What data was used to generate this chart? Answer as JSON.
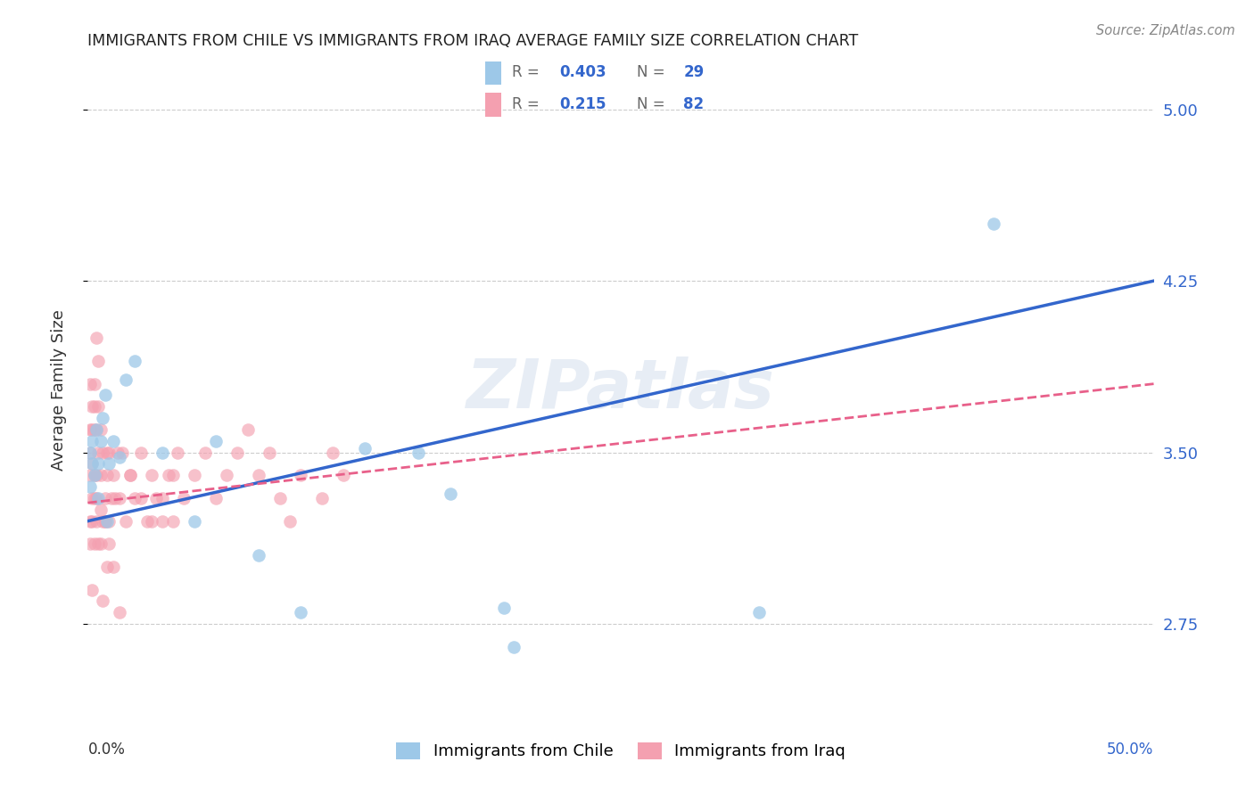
{
  "title": "IMMIGRANTS FROM CHILE VS IMMIGRANTS FROM IRAQ AVERAGE FAMILY SIZE CORRELATION CHART",
  "source": "Source: ZipAtlas.com",
  "ylabel": "Average Family Size",
  "ytick_labels": [
    "2.75",
    "3.50",
    "4.25",
    "5.00"
  ],
  "ytick_values": [
    2.75,
    3.5,
    4.25,
    5.0
  ],
  "ylim": [
    2.35,
    5.2
  ],
  "xlim": [
    0.0,
    0.5
  ],
  "legend1_label": "Immigrants from Chile",
  "legend2_label": "Immigrants from Iraq",
  "r_chile": "0.403",
  "n_chile": "29",
  "r_iraq": "0.215",
  "n_iraq": "82",
  "color_chile": "#9DC8E8",
  "color_iraq": "#F4A0B0",
  "line_chile_color": "#3366CC",
  "line_iraq_color": "#E8608A",
  "watermark": "ZIPatlas",
  "chile_x": [
    0.001,
    0.001,
    0.002,
    0.002,
    0.003,
    0.004,
    0.005,
    0.005,
    0.006,
    0.007,
    0.008,
    0.009,
    0.01,
    0.012,
    0.015,
    0.018,
    0.022,
    0.035,
    0.05,
    0.06,
    0.08,
    0.1,
    0.13,
    0.155,
    0.17,
    0.2,
    0.195,
    0.315,
    0.425
  ],
  "chile_y": [
    3.35,
    3.5,
    3.55,
    3.45,
    3.4,
    3.6,
    3.3,
    3.45,
    3.55,
    3.65,
    3.75,
    3.2,
    3.45,
    3.55,
    3.48,
    3.82,
    3.9,
    3.5,
    3.2,
    3.55,
    3.05,
    2.8,
    3.52,
    3.5,
    3.32,
    2.65,
    2.82,
    2.8,
    4.5
  ],
  "iraq_x": [
    0.001,
    0.001,
    0.001,
    0.001,
    0.001,
    0.001,
    0.002,
    0.002,
    0.002,
    0.002,
    0.002,
    0.003,
    0.003,
    0.003,
    0.003,
    0.003,
    0.004,
    0.004,
    0.004,
    0.004,
    0.005,
    0.005,
    0.005,
    0.006,
    0.006,
    0.006,
    0.007,
    0.007,
    0.008,
    0.008,
    0.009,
    0.009,
    0.01,
    0.01,
    0.011,
    0.012,
    0.013,
    0.014,
    0.015,
    0.016,
    0.018,
    0.02,
    0.022,
    0.025,
    0.028,
    0.03,
    0.032,
    0.035,
    0.038,
    0.04,
    0.042,
    0.045,
    0.05,
    0.055,
    0.06,
    0.065,
    0.07,
    0.075,
    0.08,
    0.085,
    0.09,
    0.095,
    0.1,
    0.11,
    0.115,
    0.12,
    0.002,
    0.003,
    0.004,
    0.005,
    0.006,
    0.007,
    0.008,
    0.009,
    0.01,
    0.012,
    0.015,
    0.02,
    0.025,
    0.03,
    0.035,
    0.04
  ],
  "iraq_y": [
    3.2,
    3.5,
    3.1,
    3.4,
    3.8,
    3.6,
    3.45,
    3.7,
    3.2,
    3.3,
    3.6,
    3.1,
    3.4,
    3.8,
    3.3,
    3.6,
    3.2,
    3.4,
    3.6,
    3.3,
    3.1,
    3.5,
    3.7,
    3.4,
    3.25,
    3.6,
    3.2,
    3.5,
    3.2,
    3.3,
    3.5,
    3.4,
    3.2,
    3.5,
    3.3,
    3.4,
    3.3,
    3.5,
    3.3,
    3.5,
    3.2,
    3.4,
    3.3,
    3.5,
    3.2,
    3.4,
    3.3,
    3.2,
    3.4,
    3.2,
    3.5,
    3.3,
    3.4,
    3.5,
    3.3,
    3.4,
    3.5,
    3.6,
    3.4,
    3.5,
    3.3,
    3.2,
    3.4,
    3.3,
    3.5,
    3.4,
    2.9,
    3.7,
    4.0,
    3.9,
    3.1,
    2.85,
    3.2,
    3.0,
    3.1,
    3.0,
    2.8,
    3.4,
    3.3,
    3.2,
    3.3,
    3.4
  ],
  "chile_line_x0": 0.0,
  "chile_line_y0": 3.2,
  "chile_line_x1": 0.5,
  "chile_line_y1": 4.25,
  "iraq_line_x0": 0.0,
  "iraq_line_y0": 3.28,
  "iraq_line_x1": 0.5,
  "iraq_line_y1": 3.8
}
